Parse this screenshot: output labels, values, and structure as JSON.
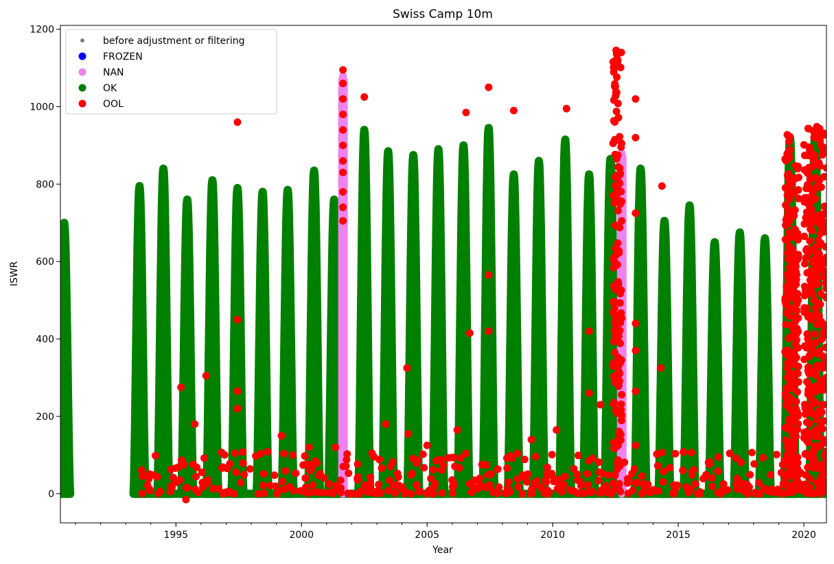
{
  "chart_data": {
    "type": "scatter",
    "title": "Swiss Camp 10m",
    "xlabel": "Year",
    "ylabel": "ISWR",
    "xlim": [
      1990.4,
      2020.9
    ],
    "ylim": [
      -75,
      1210
    ],
    "x_ticks": [
      1995,
      2000,
      2005,
      2010,
      2015,
      2020
    ],
    "y_ticks": [
      0,
      200,
      400,
      600,
      800,
      1000,
      1200
    ],
    "grid": false,
    "legend_position": "top-left",
    "legend": [
      {
        "label": "before adjustment or filtering",
        "color": "#808080",
        "marker": "small-dot"
      },
      {
        "label": "FROZEN",
        "color": "#0000ff",
        "marker": "dot"
      },
      {
        "label": "NAN",
        "color": "#ee82ee",
        "marker": "dot"
      },
      {
        "label": "OK",
        "color": "#008000",
        "marker": "dot"
      },
      {
        "label": "OOL",
        "color": "#ff0000",
        "marker": "dot"
      }
    ],
    "ok_seasonal_peaks": [
      {
        "x": 1990.55,
        "peak": 700
      },
      {
        "x": 1993.55,
        "peak": 795
      },
      {
        "x": 1994.5,
        "peak": 840
      },
      {
        "x": 1995.45,
        "peak": 760
      },
      {
        "x": 1996.45,
        "peak": 810
      },
      {
        "x": 1997.45,
        "peak": 790
      },
      {
        "x": 1998.45,
        "peak": 780
      },
      {
        "x": 1999.45,
        "peak": 785
      },
      {
        "x": 2000.5,
        "peak": 835
      },
      {
        "x": 2001.3,
        "peak": 760
      },
      {
        "x": 2002.5,
        "peak": 940
      },
      {
        "x": 2003.45,
        "peak": 885
      },
      {
        "x": 2004.45,
        "peak": 875
      },
      {
        "x": 2005.45,
        "peak": 890
      },
      {
        "x": 2006.45,
        "peak": 900
      },
      {
        "x": 2007.45,
        "peak": 945
      },
      {
        "x": 2008.45,
        "peak": 825
      },
      {
        "x": 2009.45,
        "peak": 860
      },
      {
        "x": 2010.5,
        "peak": 915
      },
      {
        "x": 2011.45,
        "peak": 825
      },
      {
        "x": 2012.3,
        "peak": 865
      },
      {
        "x": 2013.5,
        "peak": 840
      },
      {
        "x": 2014.45,
        "peak": 705
      },
      {
        "x": 2015.45,
        "peak": 745
      },
      {
        "x": 2016.45,
        "peak": 650
      },
      {
        "x": 2017.45,
        "peak": 675
      },
      {
        "x": 2018.45,
        "peak": 660
      },
      {
        "x": 2019.45,
        "peak": 920
      },
      {
        "x": 2020.45,
        "peak": 930
      }
    ],
    "nan_points": [
      {
        "x": 2001.65,
        "y": 1080
      },
      {
        "x": 2001.65,
        "y": 950
      },
      {
        "x": 2001.65,
        "y": 820
      },
      {
        "x": 2001.65,
        "y": 700
      },
      {
        "x": 2001.65,
        "y": 560
      },
      {
        "x": 2001.65,
        "y": 420
      },
      {
        "x": 2001.65,
        "y": 280
      },
      {
        "x": 2001.65,
        "y": 140
      },
      {
        "x": 2001.65,
        "y": 0
      },
      {
        "x": 2012.75,
        "y": 880
      },
      {
        "x": 2012.75,
        "y": 700
      },
      {
        "x": 2012.75,
        "y": 520
      },
      {
        "x": 2012.75,
        "y": 340
      },
      {
        "x": 2012.75,
        "y": 160
      },
      {
        "x": 2012.75,
        "y": 0
      }
    ],
    "ool_points": [
      {
        "x": 1997.45,
        "y": 960
      },
      {
        "x": 1997.45,
        "y": 450
      },
      {
        "x": 1997.45,
        "y": 265
      },
      {
        "x": 1997.45,
        "y": 220
      },
      {
        "x": 1997.35,
        "y": 105
      },
      {
        "x": 1995.2,
        "y": 275
      },
      {
        "x": 1995.75,
        "y": 180
      },
      {
        "x": 1996.2,
        "y": 305
      },
      {
        "x": 1995.4,
        "y": -15
      },
      {
        "x": 1999.2,
        "y": 150
      },
      {
        "x": 1999.65,
        "y": 100
      },
      {
        "x": 2000.3,
        "y": 120
      },
      {
        "x": 2001.35,
        "y": 120
      },
      {
        "x": 2001.65,
        "y": 1095
      },
      {
        "x": 2001.65,
        "y": 1060
      },
      {
        "x": 2001.65,
        "y": 1020
      },
      {
        "x": 2001.65,
        "y": 980
      },
      {
        "x": 2001.65,
        "y": 940
      },
      {
        "x": 2001.65,
        "y": 900
      },
      {
        "x": 2001.65,
        "y": 860
      },
      {
        "x": 2001.65,
        "y": 830
      },
      {
        "x": 2001.65,
        "y": 780
      },
      {
        "x": 2001.65,
        "y": 740
      },
      {
        "x": 2001.65,
        "y": 705
      },
      {
        "x": 2001.95,
        "y": 0
      },
      {
        "x": 2002.3,
        "y": 0
      },
      {
        "x": 2002.5,
        "y": 1025
      },
      {
        "x": 2003.35,
        "y": 180
      },
      {
        "x": 2004.2,
        "y": 325
      },
      {
        "x": 2004.25,
        "y": 155
      },
      {
        "x": 2005.0,
        "y": 125
      },
      {
        "x": 2006.2,
        "y": 165
      },
      {
        "x": 2006.55,
        "y": 985
      },
      {
        "x": 2006.7,
        "y": 415
      },
      {
        "x": 2007.45,
        "y": 1050
      },
      {
        "x": 2007.45,
        "y": 565
      },
      {
        "x": 2007.45,
        "y": 420
      },
      {
        "x": 2008.45,
        "y": 990
      },
      {
        "x": 2009.15,
        "y": 140
      },
      {
        "x": 2010.15,
        "y": 165
      },
      {
        "x": 2010.55,
        "y": 995
      },
      {
        "x": 2011.45,
        "y": 420
      },
      {
        "x": 2011.45,
        "y": 260
      },
      {
        "x": 2011.9,
        "y": 230
      },
      {
        "x": 2013.3,
        "y": 1020
      },
      {
        "x": 2013.3,
        "y": 920
      },
      {
        "x": 2013.3,
        "y": 725
      },
      {
        "x": 2013.3,
        "y": 440
      },
      {
        "x": 2013.3,
        "y": 370
      },
      {
        "x": 2013.3,
        "y": 265
      },
      {
        "x": 2013.3,
        "y": 125
      },
      {
        "x": 2014.35,
        "y": 795
      },
      {
        "x": 2014.3,
        "y": 325
      }
    ],
    "ool_dense_bands": [
      {
        "x_start": 2012.4,
        "x_end": 2012.75,
        "y_min": 0,
        "y_max": 1150
      },
      {
        "x_start": 2019.25,
        "x_end": 2019.45,
        "y_min": 0,
        "y_max": 930
      },
      {
        "x_start": 2019.5,
        "x_end": 2019.8,
        "y_min": 0,
        "y_max": 860
      },
      {
        "x_start": 2020.0,
        "x_end": 2020.9,
        "y_min": 0,
        "y_max": 950
      }
    ],
    "ool_low_band": {
      "x_start": 1993.6,
      "x_end": 2020.9,
      "y_min": 0,
      "y_max": 110
    }
  }
}
